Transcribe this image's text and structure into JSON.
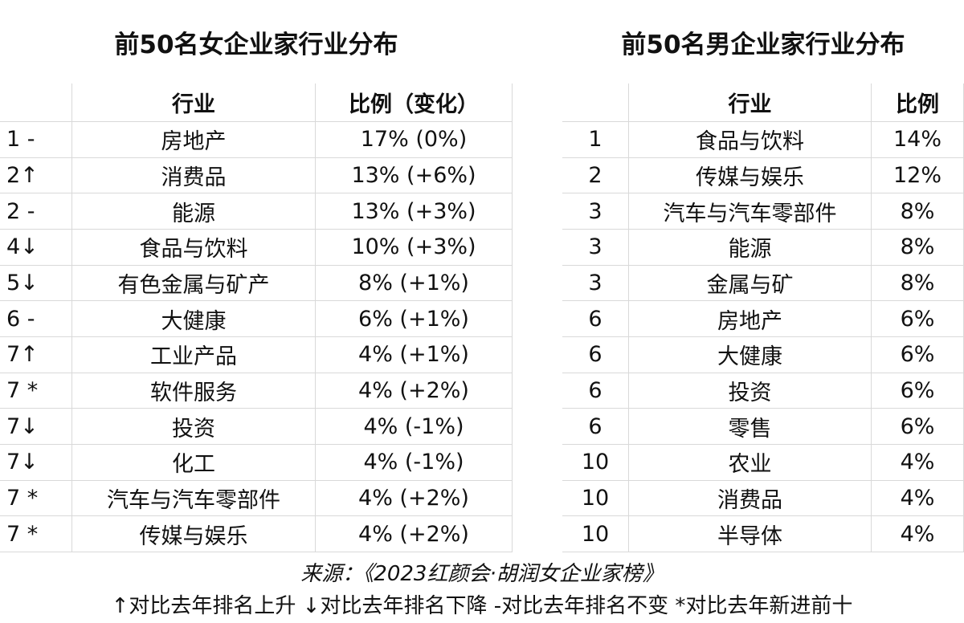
{
  "left_table": {
    "title": "前50名女企业家行业分布",
    "headers": [
      "行业",
      "比例（变化）"
    ],
    "rows": [
      [
        "1 -",
        "房地产",
        "17% (0%)"
      ],
      [
        "2↑",
        "消费品",
        "13% (+6%)"
      ],
      [
        "2 -",
        "能源",
        "13% (+3%)"
      ],
      [
        "4↓",
        "食品与饮料",
        "10% (+3%)"
      ],
      [
        "5↓",
        "有色金属与矿产",
        "8% (+1%)"
      ],
      [
        "6 -",
        "大健康",
        "6% (+1%)"
      ],
      [
        "7↑",
        "工业产品",
        "4% (+1%)"
      ],
      [
        "7 *",
        "软件服务",
        "4% (+2%)"
      ],
      [
        "7↓",
        "投资",
        "4% (-1%)"
      ],
      [
        "7↓",
        "化工",
        "4% (-1%)"
      ],
      [
        "7 *",
        "汽车与汽车零部件",
        "4% (+2%)"
      ],
      [
        "7 *",
        "传媒与娱乐",
        "4% (+2%)"
      ]
    ]
  },
  "right_table": {
    "title": "前50名男企业家行业分布",
    "headers": [
      "行业",
      "比例"
    ],
    "rows": [
      [
        "1",
        "食品与饮料",
        "14%"
      ],
      [
        "2",
        "传媒与娱乐",
        "12%"
      ],
      [
        "3",
        "汽车与汽车零部件",
        "8%"
      ],
      [
        "3",
        "能源",
        "8%"
      ],
      [
        "3",
        "金属与矿",
        "8%"
      ],
      [
        "6",
        "房地产",
        "6%"
      ],
      [
        "6",
        "大健康",
        "6%"
      ],
      [
        "6",
        "投资",
        "6%"
      ],
      [
        "6",
        "零售",
        "6%"
      ],
      [
        "10",
        "农业",
        "4%"
      ],
      [
        "10",
        "消费品",
        "4%"
      ],
      [
        "10",
        "半导体",
        "4%"
      ]
    ]
  },
  "footer": {
    "source": "来源：《2023红颜会·胡润女企业家榜》",
    "legend": "↑对比去年排名上升 ↓对比去年排名下降 -对比去年排名不变 *对比去年新进前十"
  }
}
